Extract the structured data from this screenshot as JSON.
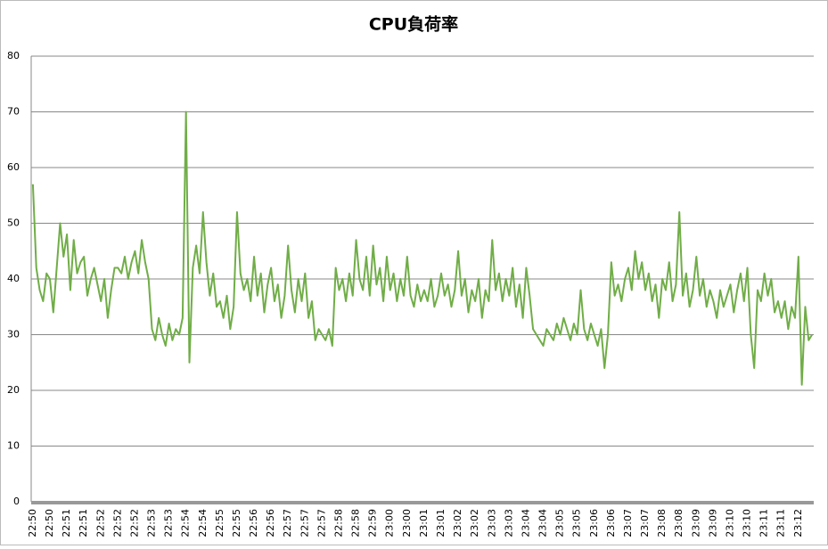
{
  "chart_data": {
    "type": "line",
    "title": "CPU負荷率",
    "categories": [
      "22:50",
      null,
      null,
      null,
      null,
      "22:50",
      null,
      null,
      null,
      null,
      "22:51",
      null,
      null,
      null,
      null,
      "22:51",
      null,
      null,
      null,
      null,
      "22:52",
      null,
      null,
      null,
      null,
      "22:52",
      null,
      null,
      null,
      null,
      "22:52",
      null,
      null,
      null,
      null,
      "22:53",
      null,
      null,
      null,
      null,
      "22:53",
      null,
      null,
      null,
      null,
      "22:54",
      null,
      null,
      null,
      null,
      "22:54",
      null,
      null,
      null,
      null,
      "22:55",
      null,
      null,
      null,
      null,
      "22:55",
      null,
      null,
      null,
      null,
      "22:56",
      null,
      null,
      null,
      null,
      "22:56",
      null,
      null,
      null,
      null,
      "22:57",
      null,
      null,
      null,
      null,
      "22:57",
      null,
      null,
      null,
      null,
      "22:57",
      null,
      null,
      null,
      null,
      "22:58",
      null,
      null,
      null,
      null,
      "22:58",
      null,
      null,
      null,
      null,
      "22:59",
      null,
      null,
      null,
      null,
      "23:00",
      null,
      null,
      null,
      null,
      "23:00",
      null,
      null,
      null,
      null,
      "23:01",
      null,
      null,
      null,
      null,
      "23:01",
      null,
      null,
      null,
      null,
      "23:02",
      null,
      null,
      null,
      null,
      "23:02",
      null,
      null,
      null,
      null,
      "23:03",
      null,
      null,
      null,
      null,
      "23:03",
      null,
      null,
      null,
      null,
      "23:04",
      null,
      null,
      null,
      null,
      "23:04",
      null,
      null,
      null,
      null,
      "23:05",
      null,
      null,
      null,
      null,
      "23:05",
      null,
      null,
      null,
      null,
      "23:06",
      null,
      null,
      null,
      null,
      "23:06",
      null,
      null,
      null,
      null,
      "23:07",
      null,
      null,
      null,
      null,
      "23:07",
      null,
      null,
      null,
      null,
      "23:08",
      null,
      null,
      null,
      null,
      "23:08",
      null,
      null,
      null,
      null,
      "23:09",
      null,
      null,
      null,
      null,
      "23:09",
      null,
      null,
      null,
      null,
      "23:10",
      null,
      null,
      null,
      null,
      "23:10",
      null,
      null,
      null,
      null,
      "23:11",
      null,
      null,
      null,
      null,
      "23:11",
      null,
      null,
      null,
      null,
      "23:12",
      null,
      null,
      null,
      null
    ],
    "series": [
      {
        "color": "#70ad47",
        "values": [
          57,
          42,
          38,
          36,
          41,
          40,
          34,
          42,
          50,
          44,
          48,
          38,
          47,
          41,
          43,
          44,
          37,
          40,
          42,
          39,
          36,
          40,
          33,
          38,
          42,
          42,
          41,
          44,
          40,
          43,
          45,
          41,
          47,
          43,
          40,
          31,
          29,
          33,
          30,
          28,
          32,
          29,
          31,
          30,
          33,
          70,
          25,
          42,
          46,
          41,
          52,
          43,
          37,
          41,
          35,
          36,
          33,
          37,
          31,
          35,
          52,
          41,
          38,
          40,
          36,
          44,
          37,
          41,
          34,
          39,
          42,
          36,
          39,
          33,
          37,
          46,
          38,
          34,
          40,
          36,
          41,
          33,
          36,
          29,
          31,
          30,
          29,
          31,
          28,
          42,
          38,
          40,
          36,
          41,
          37,
          47,
          40,
          38,
          44,
          37,
          46,
          39,
          42,
          36,
          44,
          38,
          41,
          36,
          40,
          37,
          44,
          37,
          35,
          39,
          36,
          38,
          36,
          40,
          35,
          37,
          41,
          37,
          39,
          35,
          38,
          45,
          37,
          40,
          34,
          38,
          36,
          40,
          33,
          38,
          36,
          47,
          38,
          41,
          36,
          40,
          37,
          42,
          35,
          39,
          33,
          42,
          37,
          31,
          30,
          29,
          28,
          31,
          30,
          29,
          32,
          30,
          33,
          31,
          29,
          32,
          30,
          38,
          31,
          29,
          32,
          30,
          28,
          31,
          24,
          30,
          43,
          37,
          39,
          36,
          40,
          42,
          38,
          45,
          40,
          43,
          38,
          41,
          36,
          39,
          33,
          40,
          38,
          43,
          36,
          39,
          52,
          37,
          41,
          35,
          38,
          44,
          37,
          40,
          35,
          38,
          36,
          33,
          38,
          35,
          37,
          39,
          34,
          38,
          41,
          36,
          42,
          30,
          24,
          38,
          36,
          41,
          37,
          40,
          34,
          36,
          33,
          36,
          31,
          35,
          33,
          44,
          21,
          35,
          29,
          30
        ]
      }
    ],
    "ylim": [
      0,
      80
    ],
    "yticks": [
      0,
      10,
      20,
      30,
      40,
      50,
      60,
      70,
      80
    ],
    "grid": true
  }
}
